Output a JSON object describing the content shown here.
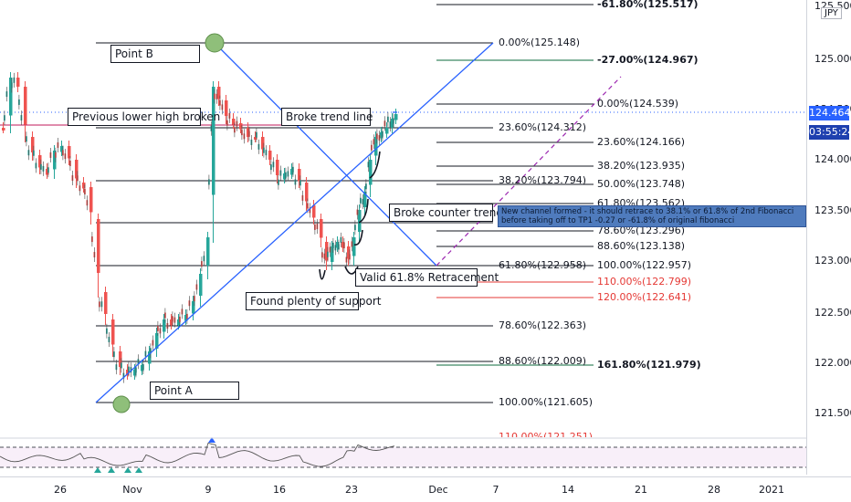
{
  "symbol": {
    "currency": "JPY"
  },
  "price_axis": {
    "ticks": [
      "125.500",
      "125.000",
      "124.500",
      "124.000",
      "123.500",
      "123.000",
      "122.500",
      "122.000",
      "121.500"
    ],
    "last_price": "124.464",
    "countdown": "03:55:24",
    "badge_color": "#2962ff"
  },
  "time_axis": {
    "ticks": [
      "26",
      "Nov",
      "9",
      "16",
      "23",
      "Dec",
      "7",
      "14",
      "21",
      "28",
      "2021"
    ]
  },
  "fib_levels_1": [
    {
      "label": "0.00%(125.148)"
    },
    {
      "label": "23.60%(124.312)"
    },
    {
      "label": "38.20%(123.794)"
    },
    {
      "label": "61.80%(122.958)"
    },
    {
      "label": "78.60%(122.363)"
    },
    {
      "label": "88.60%(122.009)"
    },
    {
      "label": "100.00%(121.605)"
    },
    {
      "label": "110.00%(121.251)"
    }
  ],
  "fib_levels_2": [
    {
      "label": "-61.80%(125.517)",
      "bold": true
    },
    {
      "label": "-27.00%(124.967)",
      "bold": true
    },
    {
      "label": "0.00%(124.539)"
    },
    {
      "label": "23.60%(124.166)"
    },
    {
      "label": "38.20%(123.935)"
    },
    {
      "label": "50.00%(123.748)"
    },
    {
      "label": "61.80%(123.562)"
    },
    {
      "label": "78.60%(123.296)"
    },
    {
      "label": "88.60%(123.138)"
    },
    {
      "label": "100.00%(122.957)"
    },
    {
      "label": "110.00%(122.799)",
      "color": "#e53935"
    },
    {
      "label": "120.00%(122.641)",
      "color": "#e53935"
    },
    {
      "label": "161.80%(121.979)",
      "bold": true
    }
  ],
  "annotations": {
    "point_b": "Point B",
    "point_a": "Point A",
    "prev_lower_high": "Previous lower high broken",
    "broke_trend_line": "Broke trend line",
    "broke_counter_trend": "Broke counter trend",
    "valid_retracement": "Valid 61.8% Retracement",
    "found_support": "Found plenty of support",
    "note": "New channel formed - it should retrace to 38.1% or 61.8% of 2nd Fibonacci before taking off to TP1 -0.27 or -61.8% of original fibonacci"
  },
  "colors": {
    "up_candle": "#26a69a",
    "down_candle": "#ef5350",
    "trend_line": "#2962ff",
    "projection_line": "#9c27b0",
    "marker": "#8fbf7a",
    "note_background": "#4f7bbd"
  }
}
